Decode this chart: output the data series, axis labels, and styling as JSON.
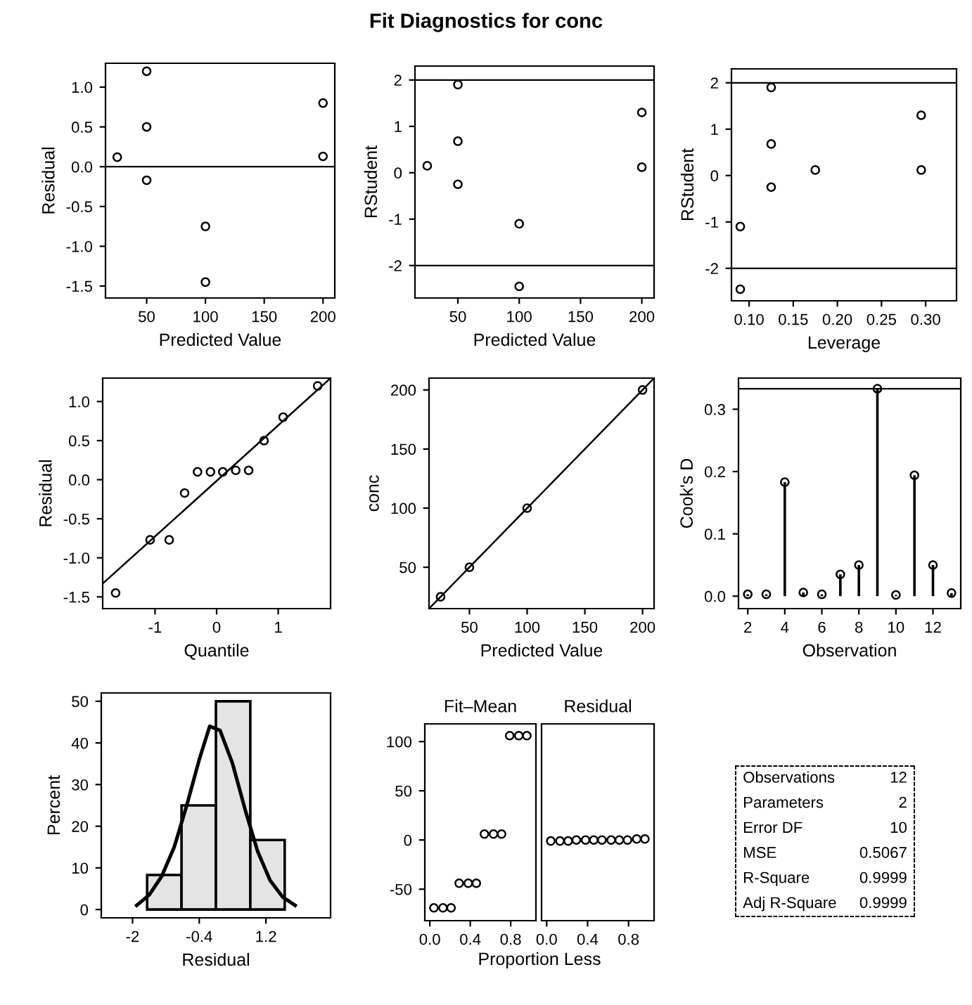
{
  "chart_data": [
    {
      "type": "other",
      "title": "Fit Diagnostics for conc"
    },
    {
      "type": "scatter",
      "xlabel": "Predicted Value",
      "ylabel": "Residual",
      "marker": "circle",
      "grid": false,
      "x": [
        25,
        50,
        50,
        50,
        100,
        100,
        200,
        200
      ],
      "values": [
        0.12,
        1.2,
        0.5,
        -0.17,
        -0.75,
        -1.45,
        0.8,
        0.13
      ],
      "color": "#000000",
      "xlim": [
        15,
        210
      ],
      "xticks": [
        50,
        100,
        150,
        200
      ],
      "ylim": [
        -1.65,
        1.3
      ],
      "yticks": [
        -1.5,
        {
          "value": -1,
          "label": "-1.0"
        },
        -0.5,
        {
          "value": 0,
          "label": "0.0"
        },
        0.5,
        {
          "value": 1,
          "label": "1.0"
        }
      ],
      "ref_lines": [
        {
          "axis": "y",
          "value": 0,
          "color": "#000000"
        }
      ]
    },
    {
      "type": "scatter",
      "xlabel": "Predicted Value",
      "ylabel": "RStudent",
      "marker": "circle",
      "grid": false,
      "x": [
        25,
        50,
        50,
        50,
        100,
        100,
        200,
        200
      ],
      "values": [
        0.15,
        1.9,
        0.68,
        -0.25,
        -1.1,
        -2.45,
        1.3,
        0.12
      ],
      "color": "#000000",
      "xlim": [
        15,
        210
      ],
      "xticks": [
        50,
        100,
        150,
        200
      ],
      "ylim": [
        -2.7,
        2.3
      ],
      "yticks": [
        -2,
        -1,
        0,
        1,
        2
      ],
      "ref_lines": [
        {
          "axis": "y",
          "value": 2,
          "color": "#000000"
        },
        {
          "axis": "y",
          "value": -2,
          "color": "#000000"
        }
      ]
    },
    {
      "type": "scatter",
      "xlabel": "Leverage",
      "ylabel": "RStudent",
      "marker": "circle",
      "grid": false,
      "x": [
        0.09,
        0.09,
        0.125,
        0.125,
        0.125,
        0.175,
        0.295,
        0.295
      ],
      "values": [
        -1.1,
        -2.45,
        1.9,
        0.68,
        -0.25,
        0.12,
        1.3,
        0.12
      ],
      "color": "#000000",
      "xlim": [
        0.08,
        0.335
      ],
      "xticks": [
        {
          "value": 0.1,
          "label": "0.10"
        },
        {
          "value": 0.15,
          "label": "0.15"
        },
        {
          "value": 0.2,
          "label": "0.20"
        },
        {
          "value": 0.25,
          "label": "0.25"
        },
        {
          "value": 0.3,
          "label": "0.30"
        }
      ],
      "ylim": [
        -2.7,
        2.3
      ],
      "yticks": [
        -2,
        -1,
        0,
        1,
        2
      ],
      "ref_lines": [
        {
          "axis": "y",
          "value": 2,
          "color": "#000000"
        },
        {
          "axis": "y",
          "value": -2,
          "color": "#000000"
        }
      ]
    },
    {
      "type": "scatter",
      "xlabel": "Quantile",
      "ylabel": "Residual",
      "marker": "circle",
      "grid": false,
      "series": [
        {
          "type": "scatter",
          "color": "#000000",
          "x": [
            -1.64,
            -1.08,
            -0.77,
            -0.52,
            -0.31,
            -0.1,
            0.1,
            0.31,
            0.52,
            0.77,
            1.08,
            1.64
          ],
          "values": [
            -1.45,
            -0.77,
            -0.77,
            -0.17,
            0.1,
            0.1,
            0.1,
            0.12,
            0.12,
            0.5,
            0.8,
            1.2
          ]
        },
        {
          "type": "line",
          "marker": "none",
          "color": "#000000",
          "x": [
            -1.85,
            1.85
          ],
          "values": [
            -1.33,
            1.3
          ]
        }
      ],
      "xlim": [
        -1.85,
        1.85
      ],
      "xticks": [
        -1,
        0,
        1
      ],
      "ylim": [
        -1.65,
        1.3
      ],
      "yticks": [
        -1.5,
        {
          "value": -1,
          "label": "-1.0"
        },
        -0.5,
        {
          "value": 0,
          "label": "0.0"
        },
        0.5,
        {
          "value": 1,
          "label": "1.0"
        }
      ]
    },
    {
      "type": "scatter",
      "xlabel": "Predicted Value",
      "ylabel": "conc",
      "marker": "circle",
      "grid": false,
      "series": [
        {
          "type": "scatter",
          "color": "#000000",
          "x": [
            25,
            50,
            100,
            200
          ],
          "values": [
            25,
            50,
            100,
            200
          ]
        },
        {
          "type": "line",
          "marker": "none",
          "color": "#000000",
          "x": [
            15,
            210
          ],
          "values": [
            15,
            210
          ]
        }
      ],
      "xlim": [
        15,
        210
      ],
      "xticks": [
        50,
        100,
        150,
        200
      ],
      "ylim": [
        15,
        210
      ],
      "yticks": [
        50,
        100,
        150,
        200
      ]
    },
    {
      "type": "lollipop",
      "xlabel": "Observation",
      "ylabel": "Cook's D",
      "marker": "circle",
      "grid": false,
      "x": [
        2,
        3,
        4,
        5,
        6,
        7,
        8,
        9,
        10,
        11,
        12,
        13
      ],
      "values": [
        0.003,
        0.003,
        0.183,
        0.006,
        0.003,
        0.035,
        0.05,
        0.333,
        0.002,
        0.194,
        0.05,
        0.005
      ],
      "color": "#000000",
      "xlim": [
        1.5,
        13.5
      ],
      "xticks": [
        2,
        4,
        6,
        8,
        10,
        12
      ],
      "ylim": [
        -0.02,
        0.35
      ],
      "yticks": [
        {
          "value": 0,
          "label": "0.0"
        },
        0.1,
        0.2,
        0.3
      ],
      "ref_lines": [
        {
          "axis": "y",
          "value": 0.333,
          "color": "#000000"
        }
      ]
    },
    {
      "type": "histogram",
      "xlabel": "Residual",
      "ylabel": "Percent",
      "grid": false,
      "bins": [
        -1.65,
        -0.825,
        0,
        0.825,
        1.65
      ],
      "values": [
        8.3,
        25,
        50,
        16.7
      ],
      "color": "#e4e4e4",
      "series": [
        {
          "type": "line",
          "color": "#000000",
          "x": [
            -1.9,
            -1.6,
            -1.3,
            -1.0,
            -0.7,
            -0.4,
            -0.15,
            0.1,
            0.4,
            0.7,
            1.0,
            1.3,
            1.6,
            1.9
          ],
          "values": [
            1,
            3.5,
            8,
            15,
            25,
            36,
            44,
            43,
            35,
            24,
            14,
            7,
            3,
            1
          ]
        }
      ],
      "xlim": [
        -2.75,
        2.75
      ],
      "xticks": [
        -2,
        -0.4,
        1.2
      ],
      "ylim": [
        -2,
        52
      ],
      "yticks": [
        0,
        10,
        20,
        30,
        40,
        50
      ]
    },
    {
      "type": "scatter",
      "title": "Fit–Mean",
      "xlabel": "Proportion Less",
      "marker": "circle",
      "grid": false,
      "x": [
        0.04,
        0.13,
        0.21,
        0.29,
        0.38,
        0.46,
        0.54,
        0.63,
        0.71,
        0.79,
        0.88,
        0.96
      ],
      "values": [
        -69,
        -69,
        -69,
        -44,
        -44,
        -44,
        6,
        6,
        6,
        106,
        106,
        106
      ],
      "color": "#000000",
      "xlim": [
        -0.05,
        1.05
      ],
      "xticks": [
        {
          "value": 0,
          "label": "0.0"
        },
        0.4,
        0.8
      ],
      "ylim": [
        -82,
        118
      ],
      "yticks": [
        -50,
        0,
        50,
        100
      ]
    },
    {
      "type": "scatter",
      "title": "Residual",
      "marker": "circle",
      "grid": false,
      "tick_labels": "x",
      "x": [
        0.04,
        0.13,
        0.21,
        0.29,
        0.38,
        0.46,
        0.54,
        0.63,
        0.71,
        0.79,
        0.88,
        0.96
      ],
      "values": [
        -1,
        -1,
        -1,
        0,
        0,
        0,
        0,
        0,
        0,
        0,
        1,
        1
      ],
      "color": "#000000",
      "xlim": [
        -0.05,
        1.05
      ],
      "xticks": [
        {
          "value": 0,
          "label": "0.0"
        },
        0.4,
        0.8
      ],
      "ylim": [
        -82,
        118
      ]
    },
    {
      "type": "other",
      "categories": [
        "Observations",
        "Parameters",
        "Error DF",
        "MSE",
        "R-Square",
        "Adj R-Square"
      ],
      "values": [
        12,
        2,
        10,
        0.5067,
        0.9999,
        0.9999
      ],
      "data_labels": true
    }
  ]
}
